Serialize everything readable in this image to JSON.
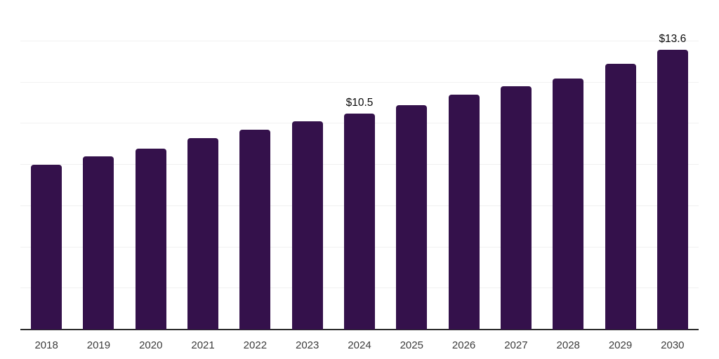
{
  "chart_data": {
    "type": "bar",
    "title": "",
    "xlabel": "",
    "ylabel": "",
    "categories": [
      "2018",
      "2019",
      "2020",
      "2021",
      "2022",
      "2023",
      "2024",
      "2025",
      "2026",
      "2027",
      "2028",
      "2029",
      "2030"
    ],
    "values": [
      8.0,
      8.4,
      8.8,
      9.3,
      9.7,
      10.1,
      10.5,
      10.9,
      11.4,
      11.8,
      12.2,
      12.9,
      13.6
    ],
    "data_labels": {
      "2024": "$10.5",
      "2030": "$13.6"
    },
    "ylim": [
      0,
      16
    ],
    "grid_step": 2,
    "grid": true,
    "legend": false,
    "colors": {
      "bar": "#34114B",
      "gridline": "#f1f1f1",
      "axis_line": "#2b2b2b",
      "x_label": "#3b3b3b",
      "data_label": "#0a0a0a"
    }
  }
}
